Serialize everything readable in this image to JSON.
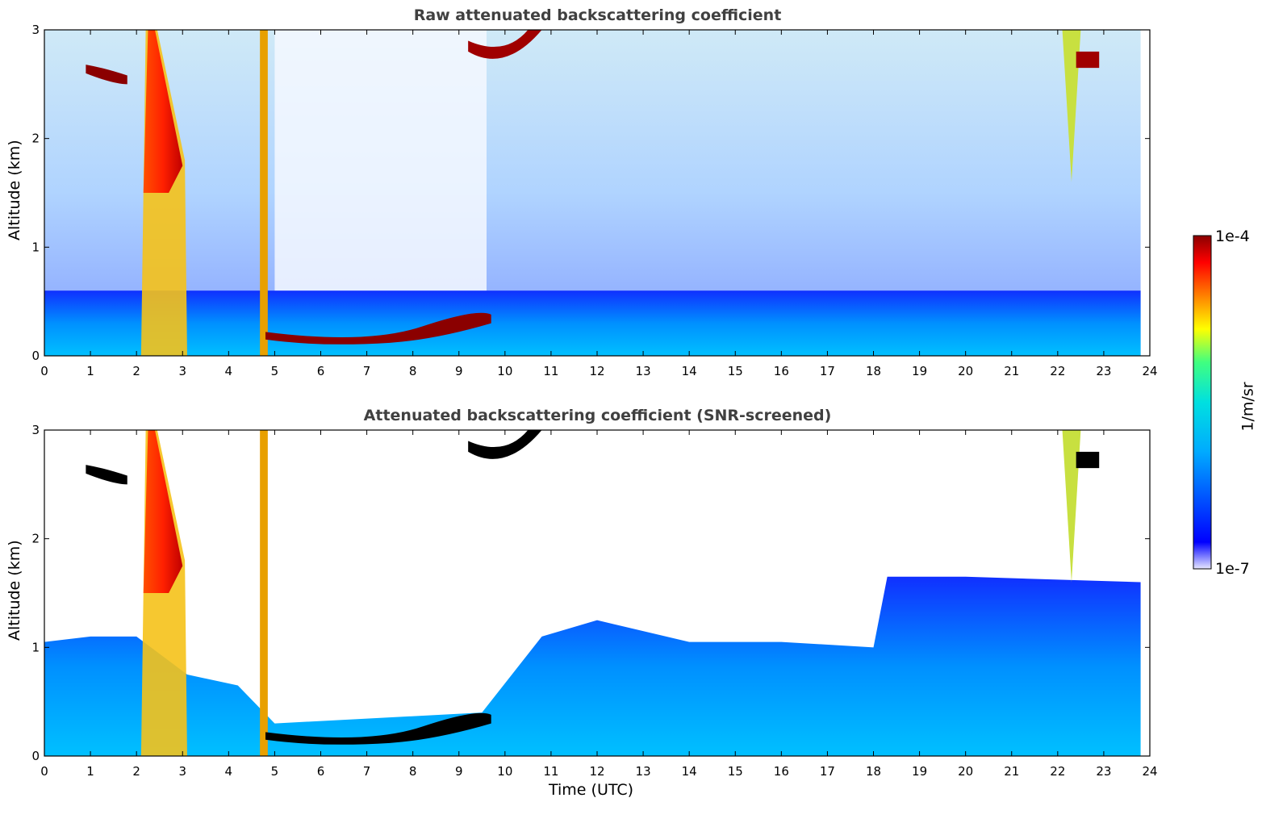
{
  "chart_data": [
    {
      "type": "heatmap",
      "title": "Raw attenuated backscattering coefficient",
      "xlabel": "",
      "ylabel": "Altitude (km)",
      "xlim": [
        0,
        24
      ],
      "ylim": [
        0,
        3
      ],
      "xticks": [
        "0",
        "1",
        "2",
        "3",
        "4",
        "5",
        "6",
        "7",
        "8",
        "9",
        "10",
        "11",
        "12",
        "13",
        "14",
        "15",
        "16",
        "17",
        "18",
        "19",
        "20",
        "21",
        "22",
        "23",
        "24"
      ],
      "yticks": [
        "0",
        "1",
        "2",
        "3"
      ],
      "features": [
        {
          "name": "boundary layer aerosol",
          "x": [
            0,
            24
          ],
          "top_km": 0.3
        },
        {
          "name": "thick cloud band",
          "x": [
            2.1,
            3.1
          ],
          "y": [
            0,
            3
          ]
        },
        {
          "name": "thin cloud column",
          "x": [
            4.7,
            4.85
          ],
          "y": [
            0,
            3
          ]
        },
        {
          "name": "low stratocumulus layer",
          "x": [
            4.8,
            9.7
          ],
          "y": [
            0.15,
            0.35
          ]
        },
        {
          "name": "elevated cloud",
          "x": [
            9.2,
            10.8
          ],
          "y": [
            2.6,
            3.0
          ]
        },
        {
          "name": "cloud column",
          "x": [
            22.1,
            22.9
          ],
          "y": [
            1.6,
            3.0
          ]
        }
      ]
    },
    {
      "type": "heatmap",
      "title": "Attenuated backscattering coefficient (SNR-screened)",
      "xlabel": "Time (UTC)",
      "ylabel": "Altitude (km)",
      "xlim": [
        0,
        24
      ],
      "ylim": [
        0,
        3
      ],
      "xticks": [
        "0",
        "1",
        "2",
        "3",
        "4",
        "5",
        "6",
        "7",
        "8",
        "9",
        "10",
        "11",
        "12",
        "13",
        "14",
        "15",
        "16",
        "17",
        "18",
        "19",
        "20",
        "21",
        "22",
        "23",
        "24"
      ],
      "yticks": [
        "0",
        "1",
        "2",
        "3"
      ],
      "boundary_layer_top_km": [
        {
          "x": 0,
          "y": 1.05
        },
        {
          "x": 1,
          "y": 1.1
        },
        {
          "x": 2,
          "y": 1.1
        },
        {
          "x": 3.1,
          "y": 0.75
        },
        {
          "x": 4.2,
          "y": 0.65
        },
        {
          "x": 5,
          "y": 0.3
        },
        {
          "x": 9.5,
          "y": 0.4
        },
        {
          "x": 10.8,
          "y": 1.1
        },
        {
          "x": 12,
          "y": 1.25
        },
        {
          "x": 14,
          "y": 1.05
        },
        {
          "x": 16,
          "y": 1.05
        },
        {
          "x": 18,
          "y": 1.0
        },
        {
          "x": 18.3,
          "y": 1.65
        },
        {
          "x": 20,
          "y": 1.65
        },
        {
          "x": 23.8,
          "y": 1.6
        }
      ]
    }
  ],
  "colorbar": {
    "label": "1/m/sr",
    "min_label": "1e-7",
    "max_label": "1e-4",
    "scale": "log",
    "colormap": [
      "#e8e8ff",
      "#0000ff",
      "#00aaff",
      "#00e0e0",
      "#40ff80",
      "#ffff00",
      "#ff8000",
      "#ff0000",
      "#8b0000"
    ]
  }
}
